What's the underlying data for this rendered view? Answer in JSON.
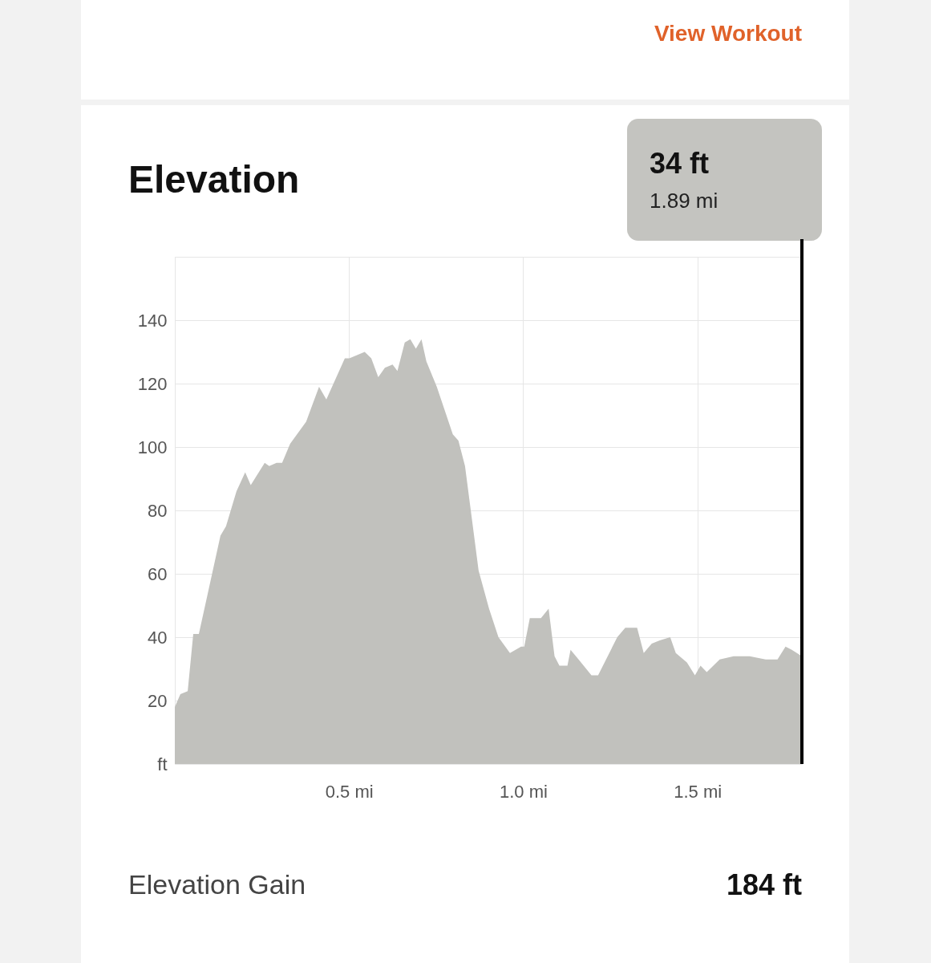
{
  "chart_data": {
    "type": "area",
    "title": "Elevation",
    "x": [
      0,
      0.016,
      0.037,
      0.053,
      0.069,
      0.131,
      0.147,
      0.177,
      0.202,
      0.218,
      0.258,
      0.271,
      0.292,
      0.308,
      0.331,
      0.377,
      0.414,
      0.435,
      0.488,
      0.501,
      0.545,
      0.564,
      0.584,
      0.603,
      0.625,
      0.639,
      0.66,
      0.676,
      0.692,
      0.708,
      0.722,
      0.752,
      0.798,
      0.814,
      0.833,
      0.872,
      0.902,
      0.929,
      0.962,
      0.994,
      1.003,
      1.019,
      1.051,
      1.073,
      1.09,
      1.104,
      1.127,
      1.136,
      1.159,
      1.196,
      1.215,
      1.27,
      1.293,
      1.327,
      1.346,
      1.369,
      1.392,
      1.422,
      1.438,
      1.47,
      1.493,
      1.509,
      1.527,
      1.564,
      1.604,
      1.65,
      1.696,
      1.718,
      1.73,
      1.753,
      1.771,
      1.8
    ],
    "series": [
      {
        "color": "#c1c1bd",
        "values": [
          18,
          22,
          23,
          41,
          41,
          72,
          75,
          86,
          92,
          88,
          95,
          94,
          95,
          95,
          101,
          108,
          119,
          115,
          128,
          128,
          130,
          128,
          122,
          125,
          126,
          124,
          133,
          134,
          131,
          134,
          127,
          119,
          104,
          102,
          94,
          61,
          49,
          40,
          35,
          37,
          37,
          46,
          46,
          49,
          34,
          31,
          31,
          36,
          33,
          28,
          28,
          40,
          43,
          43,
          35,
          38,
          39,
          40,
          35,
          32,
          28,
          31,
          29,
          33,
          34,
          34,
          33,
          33,
          33,
          37,
          36,
          34
        ]
      }
    ],
    "xlim": [
      0,
      1.8
    ],
    "xticks": [
      {
        "value": 0,
        "label": null
      },
      {
        "value": 0.5,
        "label": "0.5 mi"
      },
      {
        "value": 1.0,
        "label": "1.0 mi"
      },
      {
        "value": 1.5,
        "label": "1.5 mi"
      }
    ],
    "ylim": [
      0,
      160
    ],
    "yticks": [
      {
        "value": 0,
        "label": "ft"
      },
      20,
      40,
      60,
      80,
      100,
      120,
      140,
      {
        "value": 160,
        "label": null
      }
    ],
    "grid": true,
    "ref_lines": [
      {
        "axis": "x",
        "value": 1.8,
        "color": "#000000"
      }
    ],
    "annotations": [
      "View Workout",
      "34 ft",
      "1.89 mi",
      "Elevation Gain",
      "184 ft"
    ]
  }
}
